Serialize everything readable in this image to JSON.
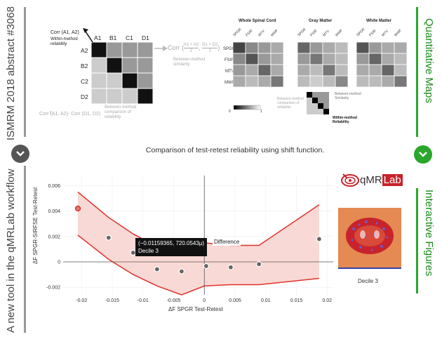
{
  "side": {
    "left_top": "ISMRM 2018 abstract #3068",
    "left_bottom": "A new tool in the qMRLab workflow",
    "right_top": "Quantitative Maps",
    "right_bottom": "Interactive Figures"
  },
  "nav": {
    "down_left": "down-chevron",
    "down_right": "down-chevron"
  },
  "matrix": {
    "cols": [
      "A1",
      "B1",
      "C1",
      "D1"
    ],
    "rows": [
      "A2",
      "B2",
      "C2",
      "D2"
    ],
    "corr_label": "Corr (A1, A2)",
    "within_label": "Within-method\nreliability",
    "corr_formula_prefix": "Corr",
    "formula_num1": "A1 + A2",
    "formula_num2": "D1 + D2",
    "formula_den": "2",
    "between_similarity": "Between-method\nsimilarity",
    "bottom_corr": "Corr (A1, A2)- Corr (D1, D2)",
    "between_comparison": "Between-method\ncomparison of\nreliability"
  },
  "qmaps": {
    "regions": [
      "Whole Spinal Cord",
      "Gray Matter",
      "White Matter"
    ],
    "metrics": [
      "SPGR",
      "FSIR",
      "MTV",
      "MWF"
    ],
    "colorbar_min": "0",
    "colorbar_max": "1",
    "legend_between": "Between-method\nSimilarity",
    "legend_between_comp": "Between-method\ncomparison of\nreliability",
    "legend_within": "Within-method\nReliability"
  },
  "chart_title": "Comparison of test-retest reliability using shift function.",
  "logo": {
    "text_q": "qMR",
    "text_lab": "Lab"
  },
  "chart_data": {
    "type": "scatter",
    "title": "Comparison of test-retest reliability using shift function.",
    "xlabel": "ΔF SPGR Test-Retest",
    "ylabel": "ΔF SPGR-SIRFSE Test-Retest",
    "xlim": [
      -0.023,
      0.021
    ],
    "ylim": [
      -0.0026,
      0.0068
    ],
    "xticks": [
      -0.02,
      -0.015,
      -0.01,
      -0.005,
      0,
      0.005,
      0.01,
      0.015,
      0.02
    ],
    "xtick_labels": [
      "-0.02",
      "-0.015",
      "-0.01",
      "-0.005",
      "0",
      "0.005",
      "0.01",
      "0.015",
      "0.02"
    ],
    "yticks": [
      -0.002,
      0,
      0.002,
      0.004,
      0.006
    ],
    "ytick_labels": [
      "-0.002",
      "0",
      "0.002",
      "0.004",
      "0.006"
    ],
    "points": [
      {
        "x": -0.0206,
        "y": 0.0042,
        "highlight": true
      },
      {
        "x": -0.0156,
        "y": 0.0019
      },
      {
        "x": -0.0116,
        "y": 0.00072
      },
      {
        "x": -0.0077,
        "y": -0.00058
      },
      {
        "x": -0.0037,
        "y": -0.00075
      },
      {
        "x": 0.0003,
        "y": -0.00033
      },
      {
        "x": 0.0043,
        "y": -0.00043
      },
      {
        "x": 0.0089,
        "y": -0.00018
      },
      {
        "x": 0.0187,
        "y": 0.0018
      }
    ],
    "upper_band": [
      [
        -0.0206,
        0.0055
      ],
      [
        -0.0156,
        0.0035
      ],
      [
        -0.0116,
        0.0022
      ],
      [
        -0.0077,
        0.0012
      ],
      [
        -0.0037,
        0.0009
      ],
      [
        0,
        0.0015
      ],
      [
        0.0043,
        0.0013
      ],
      [
        0.0089,
        0.0013
      ],
      [
        0.0187,
        0.0045
      ]
    ],
    "lower_band": [
      [
        -0.0206,
        0.0021
      ],
      [
        -0.0156,
        0.0002
      ],
      [
        -0.0116,
        -0.001
      ],
      [
        -0.0077,
        -0.0019
      ],
      [
        -0.0037,
        -0.0026
      ],
      [
        0,
        -0.0019
      ],
      [
        0.0043,
        -0.0018
      ],
      [
        0.0089,
        -0.0018
      ],
      [
        0.0187,
        -0.0013
      ]
    ],
    "hover": {
      "text": "(−0.01159365, 720.0543μ)",
      "decile": "Decile 3",
      "series": "Difference"
    }
  },
  "inset": {
    "caption": "Decile 3"
  }
}
